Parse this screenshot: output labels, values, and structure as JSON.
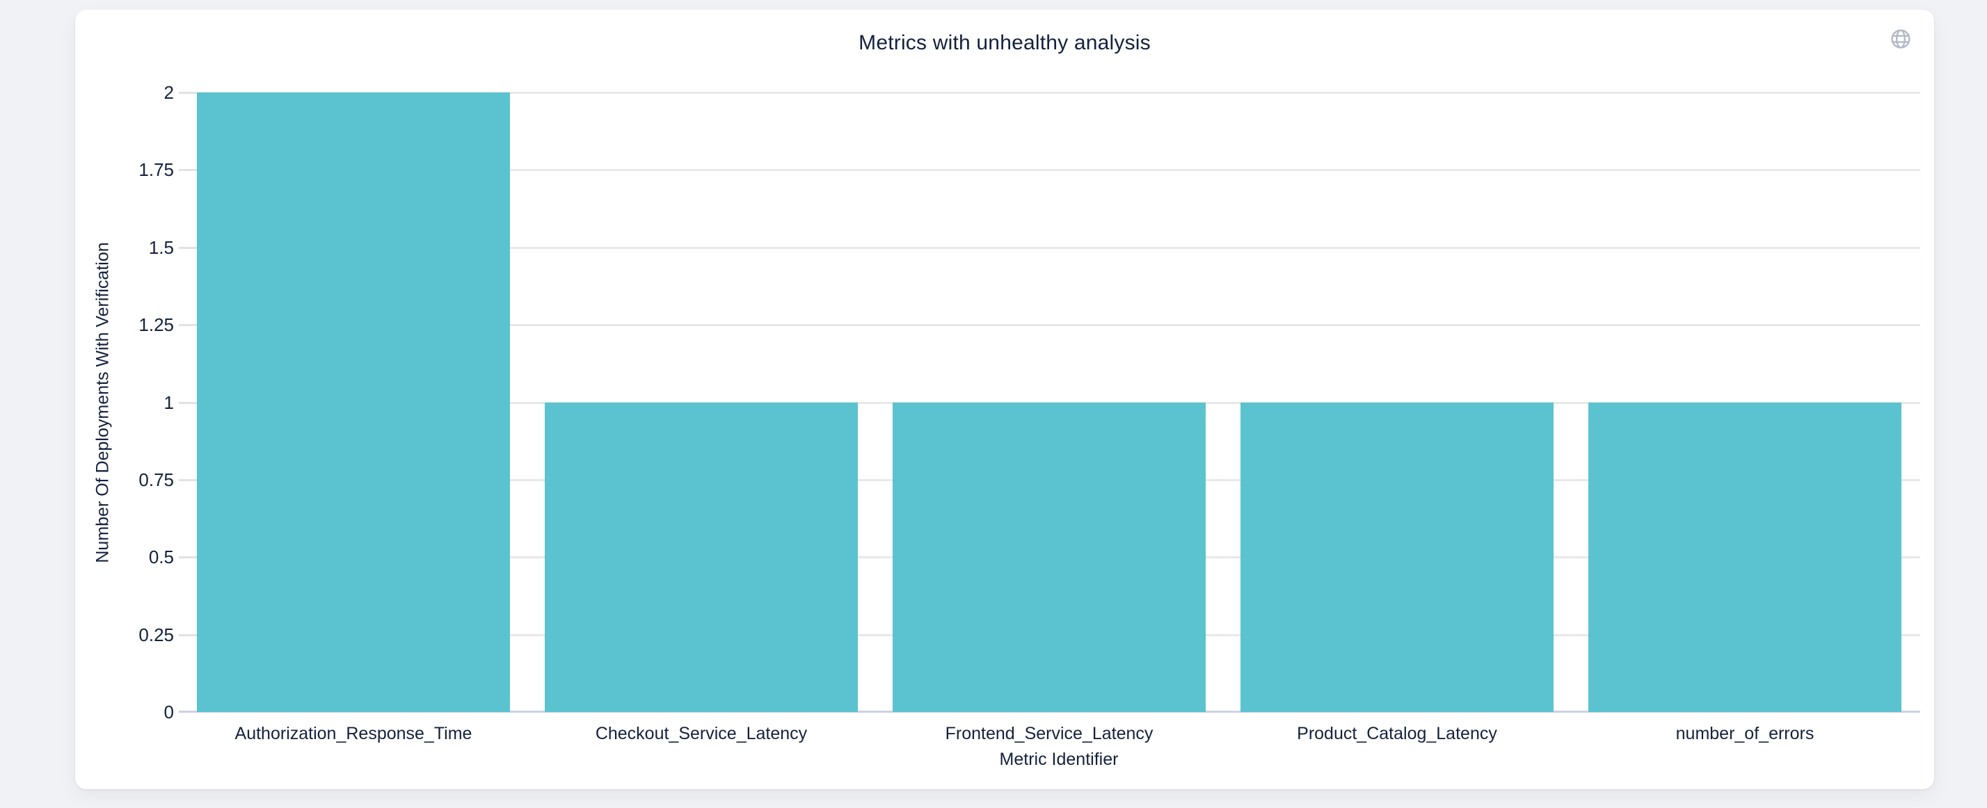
{
  "chart_data": {
    "type": "bar",
    "title": "Metrics with unhealthy analysis",
    "categories": [
      "Authorization_Response_Time",
      "Checkout_Service_Latency",
      "Frontend_Service_Latency",
      "Product_Catalog_Latency",
      "number_of_errors"
    ],
    "values": [
      2,
      1,
      1,
      1,
      1
    ],
    "xlabel": "Metric Identifier",
    "ylabel": "Number Of Deployments With Verification",
    "ylim": [
      0,
      2
    ],
    "yticks": [
      0,
      0.25,
      0.5,
      0.75,
      1,
      1.25,
      1.5,
      1.75,
      2
    ],
    "grid": true,
    "legend_position": "none",
    "bar_color": "#5bc3d0"
  },
  "icons": {
    "top_right": "globe-icon"
  },
  "colors": {
    "bar": "#5bc3d0",
    "text": "#14213d",
    "gridline": "#e8e8e8",
    "axis_line": "#ccd2e8",
    "icon": "#b3bac6",
    "page_background": "#f0f2f5",
    "card_background": "#ffffff"
  }
}
